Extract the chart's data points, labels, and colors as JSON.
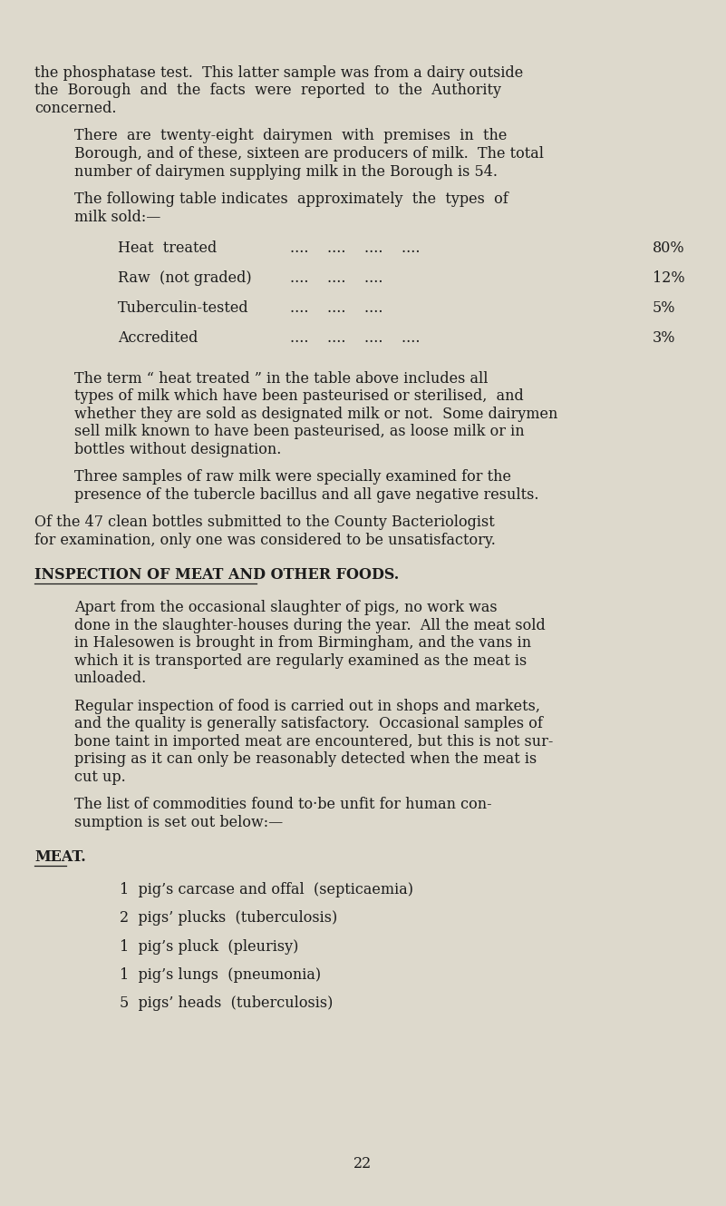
{
  "background_color": "#ddd9cc",
  "text_color": "#1c1c1c",
  "page_number": "22",
  "font_size_body": 11.5,
  "font_size_heading": 11.5,
  "paragraphs": [
    {
      "type": "body",
      "indent": false,
      "lines": [
        "the phosphatase test.  This latter sample was from a dairy outside",
        "the  Borough  and  the  facts  were  reported  to  the  Authority",
        "concerned."
      ]
    },
    {
      "type": "body",
      "indent": true,
      "lines": [
        "There  are  twenty-eight  dairymen  with  premises  in  the",
        "Borough, and of these, sixteen are producers of milk.  The total",
        "number of dairymen supplying milk in the Borough is 54."
      ]
    },
    {
      "type": "body",
      "indent": true,
      "lines": [
        "The following table indicates  approximately  the  types  of",
        "milk sold:—"
      ]
    },
    {
      "type": "table",
      "rows": [
        {
          "label": "Heat  treated",
          "dots": "....    ....    ....    ....",
          "value": "80%"
        },
        {
          "label": "Raw  (not graded)",
          "dots": "....    ....    ....",
          "value": "12%"
        },
        {
          "label": "Tuberculin-tested",
          "dots": "....    ....    ....",
          "value": "5%"
        },
        {
          "label": "Accredited",
          "dots": "....    ....    ....    ....",
          "value": "3%"
        }
      ]
    },
    {
      "type": "body",
      "indent": true,
      "lines": [
        "The term “ heat treated ” in the table above includes all",
        "types of milk which have been pasteurised or sterilised,  and",
        "whether they are sold as designated milk or not.  Some dairymen",
        "sell milk known to have been pasteurised, as loose milk or in",
        "bottles without designation."
      ]
    },
    {
      "type": "body",
      "indent": true,
      "lines": [
        "Three samples of raw milk were specially examined for the",
        "presence of the tubercle bacillus and all gave negative results."
      ]
    },
    {
      "type": "body",
      "indent": false,
      "lines": [
        "Of the 47 clean bottles submitted to the County Bacteriologist",
        "for examination, only one was considered to be unsatisfactory."
      ]
    },
    {
      "type": "heading",
      "text": "INSPECTION OF MEAT AND OTHER FOODS.",
      "underline": true
    },
    {
      "type": "body",
      "indent": true,
      "lines": [
        "Apart from the occasional slaughter of pigs, no work was",
        "done in the slaughter-houses during the year.  All the meat sold",
        "in Halesowen is brought in from Birmingham, and the vans in",
        "which it is transported are regularly examined as the meat is",
        "unloaded."
      ]
    },
    {
      "type": "body",
      "indent": true,
      "lines": [
        "Regular inspection of food is carried out in shops and markets,",
        "and the quality is generally satisfactory.  Occasional samples of",
        "bone taint in imported meat are encountered, but this is not sur-",
        "prising as it can only be reasonably detected when the meat is",
        "cut up."
      ]
    },
    {
      "type": "body",
      "indent": true,
      "lines": [
        "The list of commodities found to·be unfit for human con-",
        "sumption is set out below:—"
      ]
    },
    {
      "type": "heading",
      "text": "MEAT.",
      "underline": true
    },
    {
      "type": "list",
      "items": [
        "1  pig’s carcase and offal  (septicaemia)",
        "2  pigs’ plucks  (tuberculosis)",
        "1  pig’s pluck  (pleurisy)",
        "1  pig’s lungs  (pneumonia)",
        "5  pigs’ heads  (tuberculosis)"
      ]
    }
  ]
}
